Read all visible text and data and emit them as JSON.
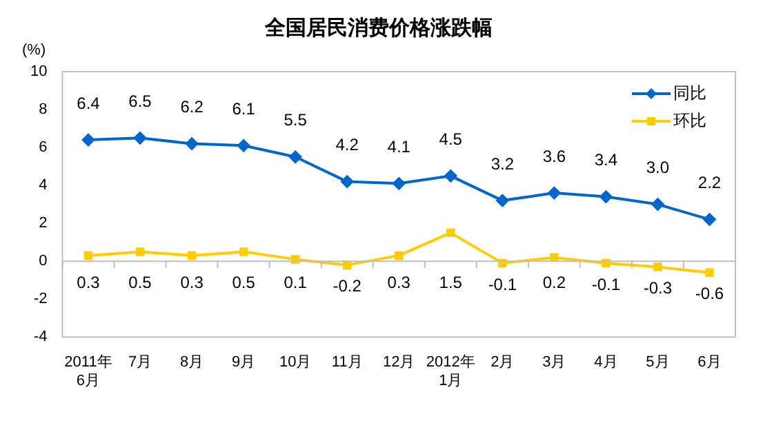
{
  "chart_data": {
    "type": "line",
    "title": "全国居民消费价格涨跌幅",
    "ylabel": "(%)",
    "categories": [
      "2011年\n6月",
      "7月",
      "8月",
      "9月",
      "10月",
      "11月",
      "12月",
      "2012年\n1月",
      "2月",
      "3月",
      "4月",
      "5月",
      "6月"
    ],
    "series": [
      {
        "name": "同比",
        "color": "#0066cc",
        "marker": "diamond",
        "values": [
          6.4,
          6.5,
          6.2,
          6.1,
          5.5,
          4.2,
          4.1,
          4.5,
          3.2,
          3.6,
          3.4,
          3.0,
          2.2
        ],
        "value_labels": [
          "6.4",
          "6.5",
          "6.2",
          "6.1",
          "5.5",
          "4.2",
          "4.1",
          "4.5",
          "3.2",
          "3.6",
          "3.4",
          "3.0",
          "2.2"
        ]
      },
      {
        "name": "环比",
        "color": "#ffcc00",
        "marker": "square",
        "values": [
          0.3,
          0.5,
          0.3,
          0.5,
          0.1,
          -0.2,
          0.3,
          1.5,
          -0.1,
          0.2,
          -0.1,
          -0.3,
          -0.6
        ],
        "value_labels": [
          "0.3",
          "0.5",
          "0.3",
          "0.5",
          "0.1",
          "-0.2",
          "0.3",
          "1.5",
          "-0.1",
          "0.2",
          "-0.1",
          "-0.3",
          "-0.6"
        ]
      }
    ],
    "ylim": [
      -4,
      10
    ],
    "yticks": [
      -4,
      -2,
      0,
      2,
      4,
      6,
      8,
      10
    ],
    "legend": "top right"
  }
}
